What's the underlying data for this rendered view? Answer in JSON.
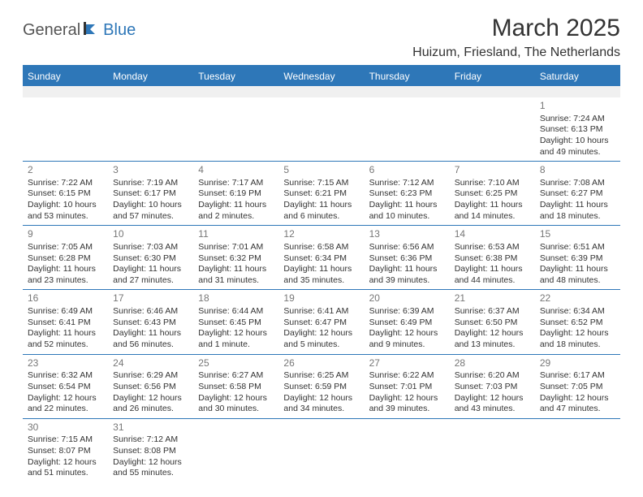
{
  "logo": {
    "text1": "General",
    "text2": "Blue"
  },
  "title": "March 2025",
  "location": "Huizum, Friesland, The Netherlands",
  "colors": {
    "accent": "#2e77b8",
    "headerText": "#ffffff",
    "bodyText": "#333333",
    "dayNum": "#777777",
    "emptyRow": "#f0f0f0"
  },
  "dayHeaders": [
    "Sunday",
    "Monday",
    "Tuesday",
    "Wednesday",
    "Thursday",
    "Friday",
    "Saturday"
  ],
  "weeks": [
    [
      null,
      null,
      null,
      null,
      null,
      null,
      {
        "n": "1",
        "sr": "Sunrise: 7:24 AM",
        "ss": "Sunset: 6:13 PM",
        "dl1": "Daylight: 10 hours",
        "dl2": "and 49 minutes."
      }
    ],
    [
      {
        "n": "2",
        "sr": "Sunrise: 7:22 AM",
        "ss": "Sunset: 6:15 PM",
        "dl1": "Daylight: 10 hours",
        "dl2": "and 53 minutes."
      },
      {
        "n": "3",
        "sr": "Sunrise: 7:19 AM",
        "ss": "Sunset: 6:17 PM",
        "dl1": "Daylight: 10 hours",
        "dl2": "and 57 minutes."
      },
      {
        "n": "4",
        "sr": "Sunrise: 7:17 AM",
        "ss": "Sunset: 6:19 PM",
        "dl1": "Daylight: 11 hours",
        "dl2": "and 2 minutes."
      },
      {
        "n": "5",
        "sr": "Sunrise: 7:15 AM",
        "ss": "Sunset: 6:21 PM",
        "dl1": "Daylight: 11 hours",
        "dl2": "and 6 minutes."
      },
      {
        "n": "6",
        "sr": "Sunrise: 7:12 AM",
        "ss": "Sunset: 6:23 PM",
        "dl1": "Daylight: 11 hours",
        "dl2": "and 10 minutes."
      },
      {
        "n": "7",
        "sr": "Sunrise: 7:10 AM",
        "ss": "Sunset: 6:25 PM",
        "dl1": "Daylight: 11 hours",
        "dl2": "and 14 minutes."
      },
      {
        "n": "8",
        "sr": "Sunrise: 7:08 AM",
        "ss": "Sunset: 6:27 PM",
        "dl1": "Daylight: 11 hours",
        "dl2": "and 18 minutes."
      }
    ],
    [
      {
        "n": "9",
        "sr": "Sunrise: 7:05 AM",
        "ss": "Sunset: 6:28 PM",
        "dl1": "Daylight: 11 hours",
        "dl2": "and 23 minutes."
      },
      {
        "n": "10",
        "sr": "Sunrise: 7:03 AM",
        "ss": "Sunset: 6:30 PM",
        "dl1": "Daylight: 11 hours",
        "dl2": "and 27 minutes."
      },
      {
        "n": "11",
        "sr": "Sunrise: 7:01 AM",
        "ss": "Sunset: 6:32 PM",
        "dl1": "Daylight: 11 hours",
        "dl2": "and 31 minutes."
      },
      {
        "n": "12",
        "sr": "Sunrise: 6:58 AM",
        "ss": "Sunset: 6:34 PM",
        "dl1": "Daylight: 11 hours",
        "dl2": "and 35 minutes."
      },
      {
        "n": "13",
        "sr": "Sunrise: 6:56 AM",
        "ss": "Sunset: 6:36 PM",
        "dl1": "Daylight: 11 hours",
        "dl2": "and 39 minutes."
      },
      {
        "n": "14",
        "sr": "Sunrise: 6:53 AM",
        "ss": "Sunset: 6:38 PM",
        "dl1": "Daylight: 11 hours",
        "dl2": "and 44 minutes."
      },
      {
        "n": "15",
        "sr": "Sunrise: 6:51 AM",
        "ss": "Sunset: 6:39 PM",
        "dl1": "Daylight: 11 hours",
        "dl2": "and 48 minutes."
      }
    ],
    [
      {
        "n": "16",
        "sr": "Sunrise: 6:49 AM",
        "ss": "Sunset: 6:41 PM",
        "dl1": "Daylight: 11 hours",
        "dl2": "and 52 minutes."
      },
      {
        "n": "17",
        "sr": "Sunrise: 6:46 AM",
        "ss": "Sunset: 6:43 PM",
        "dl1": "Daylight: 11 hours",
        "dl2": "and 56 minutes."
      },
      {
        "n": "18",
        "sr": "Sunrise: 6:44 AM",
        "ss": "Sunset: 6:45 PM",
        "dl1": "Daylight: 12 hours",
        "dl2": "and 1 minute."
      },
      {
        "n": "19",
        "sr": "Sunrise: 6:41 AM",
        "ss": "Sunset: 6:47 PM",
        "dl1": "Daylight: 12 hours",
        "dl2": "and 5 minutes."
      },
      {
        "n": "20",
        "sr": "Sunrise: 6:39 AM",
        "ss": "Sunset: 6:49 PM",
        "dl1": "Daylight: 12 hours",
        "dl2": "and 9 minutes."
      },
      {
        "n": "21",
        "sr": "Sunrise: 6:37 AM",
        "ss": "Sunset: 6:50 PM",
        "dl1": "Daylight: 12 hours",
        "dl2": "and 13 minutes."
      },
      {
        "n": "22",
        "sr": "Sunrise: 6:34 AM",
        "ss": "Sunset: 6:52 PM",
        "dl1": "Daylight: 12 hours",
        "dl2": "and 18 minutes."
      }
    ],
    [
      {
        "n": "23",
        "sr": "Sunrise: 6:32 AM",
        "ss": "Sunset: 6:54 PM",
        "dl1": "Daylight: 12 hours",
        "dl2": "and 22 minutes."
      },
      {
        "n": "24",
        "sr": "Sunrise: 6:29 AM",
        "ss": "Sunset: 6:56 PM",
        "dl1": "Daylight: 12 hours",
        "dl2": "and 26 minutes."
      },
      {
        "n": "25",
        "sr": "Sunrise: 6:27 AM",
        "ss": "Sunset: 6:58 PM",
        "dl1": "Daylight: 12 hours",
        "dl2": "and 30 minutes."
      },
      {
        "n": "26",
        "sr": "Sunrise: 6:25 AM",
        "ss": "Sunset: 6:59 PM",
        "dl1": "Daylight: 12 hours",
        "dl2": "and 34 minutes."
      },
      {
        "n": "27",
        "sr": "Sunrise: 6:22 AM",
        "ss": "Sunset: 7:01 PM",
        "dl1": "Daylight: 12 hours",
        "dl2": "and 39 minutes."
      },
      {
        "n": "28",
        "sr": "Sunrise: 6:20 AM",
        "ss": "Sunset: 7:03 PM",
        "dl1": "Daylight: 12 hours",
        "dl2": "and 43 minutes."
      },
      {
        "n": "29",
        "sr": "Sunrise: 6:17 AM",
        "ss": "Sunset: 7:05 PM",
        "dl1": "Daylight: 12 hours",
        "dl2": "and 47 minutes."
      }
    ],
    [
      {
        "n": "30",
        "sr": "Sunrise: 7:15 AM",
        "ss": "Sunset: 8:07 PM",
        "dl1": "Daylight: 12 hours",
        "dl2": "and 51 minutes."
      },
      {
        "n": "31",
        "sr": "Sunrise: 7:12 AM",
        "ss": "Sunset: 8:08 PM",
        "dl1": "Daylight: 12 hours",
        "dl2": "and 55 minutes."
      },
      null,
      null,
      null,
      null,
      null
    ]
  ]
}
